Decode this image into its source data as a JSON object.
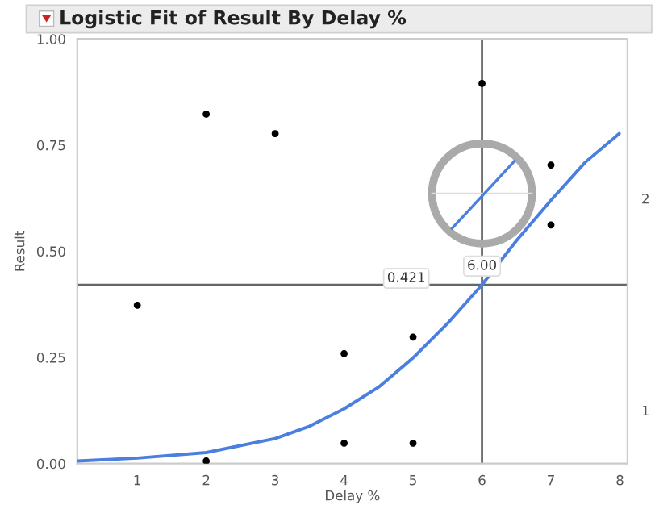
{
  "chart_data": {
    "type": "scatter",
    "title": "Logistic Fit of Result By Delay %",
    "xlabel": "Delay %",
    "ylabel": "Result",
    "series": [
      {
        "color": "#000000",
        "marker": "circle",
        "x": [
          1,
          2,
          2,
          3,
          4,
          4,
          5,
          5,
          6,
          7,
          7
        ],
        "values": [
          0.373,
          0.823,
          0.006,
          0.777,
          0.259,
          0.048,
          0.298,
          0.048,
          0.895,
          0.703,
          0.562
        ]
      },
      {
        "type": "line",
        "color": "#4a7fe0",
        "x": [
          0.13,
          1,
          2,
          3,
          3.5,
          4,
          4.5,
          5,
          5.5,
          6,
          6.5,
          7,
          7.5,
          7.99
        ],
        "values": [
          0.006,
          0.013,
          0.026,
          0.059,
          0.088,
          0.129,
          0.18,
          0.249,
          0.33,
          0.421,
          0.525,
          0.62,
          0.71,
          0.777
        ]
      }
    ],
    "xlim": [
      0.13,
      8.11
    ],
    "xticks": [
      1,
      2,
      3,
      4,
      5,
      6,
      7,
      8
    ],
    "ylim": [
      0,
      1
    ],
    "yticks": [
      {
        "value": 0,
        "label": "0.00"
      },
      {
        "value": 0.25,
        "label": "0.25"
      },
      {
        "value": 0.5,
        "label": "0.50"
      },
      {
        "value": 0.75,
        "label": "0.75"
      },
      {
        "value": 1,
        "label": "1.00"
      }
    ],
    "annotations": [
      "2",
      "1"
    ],
    "ref_lines": [
      {
        "axis": "x",
        "value": 6,
        "label": "6.00",
        "color": "#666666"
      },
      {
        "axis": "y",
        "value": 0.421,
        "label": "0.421",
        "color": "#666666"
      }
    ],
    "grid": false
  }
}
